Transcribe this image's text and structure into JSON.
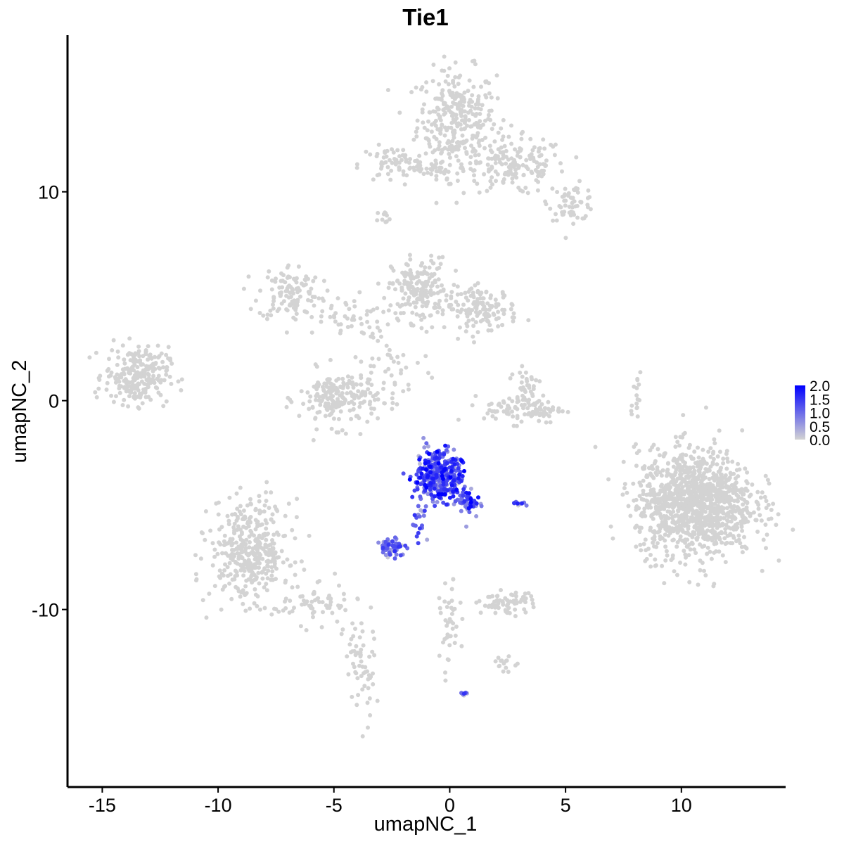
{
  "chart_data": {
    "type": "scatter",
    "title": "Tie1",
    "xlabel": "umapNC_1",
    "ylabel": "umapNC_2",
    "xlim": [
      -16.5,
      14.5
    ],
    "ylim": [
      -18.5,
      17.5
    ],
    "x_ticks": [
      -15,
      -10,
      -5,
      0,
      5,
      10
    ],
    "y_ticks": [
      -10,
      0,
      10
    ],
    "x_tick_labels": [
      "-15",
      "-10",
      "-5",
      "0",
      "5",
      "10"
    ],
    "y_tick_labels": [
      "-10",
      "0",
      "10"
    ],
    "grid": false,
    "legend": {
      "placement": "right",
      "type": "colorbar",
      "min": 0,
      "max": 2,
      "ticks": [
        2.0,
        1.5,
        1.0,
        0.5,
        0.0
      ],
      "tick_labels": [
        "2.0",
        "1.5",
        "1.0",
        "0.5",
        "0.0"
      ],
      "color_low": "#d3d3d3",
      "color_high": "#0000ff"
    },
    "clusters": [
      {
        "cx": 0.3,
        "cy": 13.5,
        "sx": 1.0,
        "sy": 1.4,
        "n": 300,
        "expr": 0
      },
      {
        "cx": 2.8,
        "cy": 11.2,
        "sx": 1.3,
        "sy": 0.8,
        "n": 170,
        "expr": 0
      },
      {
        "cx": 5.3,
        "cy": 9.5,
        "sx": 0.6,
        "sy": 0.5,
        "n": 60,
        "expr": 0
      },
      {
        "cx": -2.4,
        "cy": 11.3,
        "sx": 0.9,
        "sy": 0.5,
        "n": 70,
        "expr": 0
      },
      {
        "cx": -0.6,
        "cy": 11.1,
        "sx": 0.8,
        "sy": 0.3,
        "n": 30,
        "expr": 0
      },
      {
        "cx": -2.7,
        "cy": 8.8,
        "sx": 0.3,
        "sy": 0.2,
        "n": 10,
        "expr": 0
      },
      {
        "cx": -6.9,
        "cy": 5.2,
        "sx": 0.8,
        "sy": 0.8,
        "n": 110,
        "expr": 0
      },
      {
        "cx": -4.6,
        "cy": 4.0,
        "sx": 1.3,
        "sy": 0.6,
        "n": 60,
        "expr": 0
      },
      {
        "cx": -1.3,
        "cy": 5.3,
        "sx": 0.7,
        "sy": 0.9,
        "n": 180,
        "expr": 0
      },
      {
        "cx": 1.4,
        "cy": 4.4,
        "sx": 0.9,
        "sy": 0.6,
        "n": 140,
        "expr": 0
      },
      {
        "cx": -4.8,
        "cy": 0.1,
        "sx": 1.0,
        "sy": 0.8,
        "n": 200,
        "expr": 0
      },
      {
        "cx": -2.5,
        "cy": 1.3,
        "sx": 0.9,
        "sy": 1.2,
        "n": 40,
        "expr": 0
      },
      {
        "cx": -13.5,
        "cy": 1.2,
        "sx": 0.8,
        "sy": 0.8,
        "n": 250,
        "expr": 0
      },
      {
        "cx": 3.2,
        "cy": -0.4,
        "sx": 1.0,
        "sy": 0.4,
        "n": 100,
        "expr": 0
      },
      {
        "cx": 3.3,
        "cy": 0.8,
        "sx": 0.4,
        "sy": 0.6,
        "n": 30,
        "expr": 0
      },
      {
        "cx": 10.6,
        "cy": -4.9,
        "sx": 1.5,
        "sy": 1.5,
        "n": 1200,
        "expr": 0
      },
      {
        "cx": 8.0,
        "cy": 0.2,
        "sx": 0.2,
        "sy": 0.7,
        "n": 15,
        "expr": 0
      },
      {
        "cx": -8.6,
        "cy": -7.2,
        "sx": 1.0,
        "sy": 1.4,
        "n": 400,
        "expr": 0
      },
      {
        "cx": -5.8,
        "cy": -9.8,
        "sx": 1.1,
        "sy": 0.5,
        "n": 60,
        "expr": 0
      },
      {
        "cx": -3.9,
        "cy": -12.8,
        "sx": 0.4,
        "sy": 1.6,
        "n": 60,
        "expr": 0
      },
      {
        "cx": 2.5,
        "cy": -9.7,
        "sx": 0.7,
        "sy": 0.3,
        "n": 70,
        "expr": 0
      },
      {
        "cx": 0.0,
        "cy": -11.0,
        "sx": 0.25,
        "sy": 1.3,
        "n": 40,
        "expr": 0
      },
      {
        "cx": 2.4,
        "cy": -12.6,
        "sx": 0.3,
        "sy": 0.2,
        "n": 15,
        "expr": 0
      },
      {
        "cx": -0.5,
        "cy": -3.6,
        "sx": 0.6,
        "sy": 0.7,
        "n": 380,
        "expr": 1.2
      },
      {
        "cx": 0.8,
        "cy": -4.9,
        "sx": 0.3,
        "sy": 0.4,
        "n": 50,
        "expr": 1.2
      },
      {
        "cx": -1.3,
        "cy": -5.8,
        "sx": 0.2,
        "sy": 0.5,
        "n": 20,
        "expr": 1.0
      },
      {
        "cx": -2.5,
        "cy": -7.0,
        "sx": 0.4,
        "sy": 0.25,
        "n": 60,
        "expr": 0.9
      },
      {
        "cx": 2.9,
        "cy": -4.9,
        "sx": 0.25,
        "sy": 0.08,
        "n": 10,
        "expr": 1.0
      },
      {
        "cx": 0.6,
        "cy": -14.0,
        "sx": 0.08,
        "sy": 0.08,
        "n": 6,
        "expr": 1.0
      }
    ]
  }
}
